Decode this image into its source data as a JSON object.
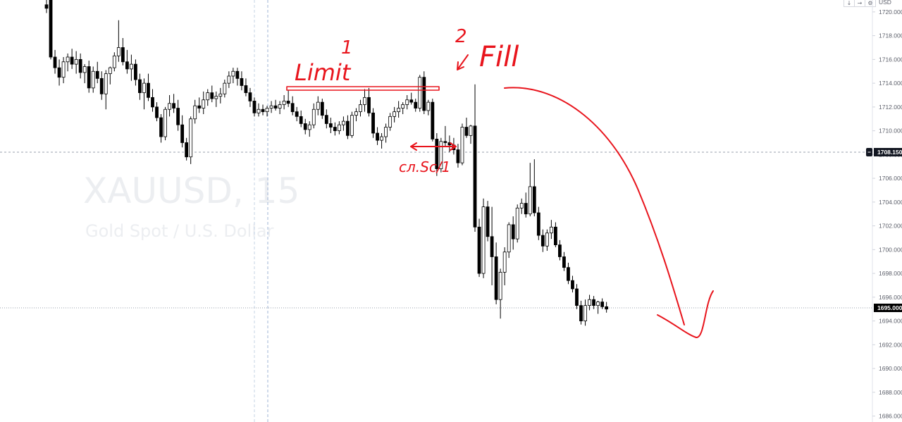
{
  "chart_data": {
    "type": "candlestick",
    "symbol": "XAUUSD, 15",
    "description": "Gold Spot / U.S. Dollar",
    "currency": "USD",
    "ylim": [
      1685.5,
      1721
    ],
    "y_ticks": [
      1720,
      1718,
      1716,
      1714,
      1712,
      1710,
      1708,
      1706,
      1704,
      1702,
      1700,
      1698,
      1696,
      1694,
      1692,
      1690,
      1688,
      1686
    ],
    "y_tick_labels": [
      "1720.000",
      "1718.000",
      "1716.000",
      "1714.000",
      "1712.000",
      "1710.000",
      "1708.000",
      "1706.000",
      "1704.000",
      "1702.000",
      "1700.000",
      "1698.000",
      "1696.000",
      "1694.000",
      "1692.000",
      "1690.000",
      "1688.000",
      "1686.000"
    ],
    "crosshair_price": 1708.15,
    "crosshair_label": "1708.150",
    "last_price": 1695.0,
    "last_price_label": "1695.000",
    "candles": [
      [
        1720.6,
        1721.5,
        1719.9,
        1720.3
      ],
      [
        1721.0,
        1721.0,
        1716.0,
        1716.2
      ],
      [
        1716.2,
        1716.8,
        1714.8,
        1715.3
      ],
      [
        1715.3,
        1716.0,
        1713.8,
        1714.5
      ],
      [
        1714.5,
        1716.2,
        1714.0,
        1715.8
      ],
      [
        1715.8,
        1716.5,
        1715.0,
        1716.2
      ],
      [
        1716.2,
        1716.9,
        1715.2,
        1715.6
      ],
      [
        1715.6,
        1716.7,
        1714.8,
        1716.0
      ],
      [
        1716.0,
        1716.5,
        1714.4,
        1714.9
      ],
      [
        1714.9,
        1715.6,
        1714.0,
        1715.4
      ],
      [
        1715.4,
        1715.9,
        1713.2,
        1713.6
      ],
      [
        1713.6,
        1715.4,
        1713.2,
        1715.0
      ],
      [
        1715.0,
        1715.8,
        1714.0,
        1714.4
      ],
      [
        1714.4,
        1715.0,
        1712.6,
        1713.1
      ],
      [
        1713.1,
        1715.1,
        1711.8,
        1714.8
      ],
      [
        1714.8,
        1715.4,
        1713.9,
        1715.3
      ],
      [
        1715.3,
        1716.6,
        1715.0,
        1716.3
      ],
      [
        1716.3,
        1719.3,
        1715.8,
        1717.0
      ],
      [
        1717.0,
        1717.8,
        1715.5,
        1715.8
      ],
      [
        1715.8,
        1716.8,
        1714.8,
        1715.2
      ],
      [
        1715.2,
        1716.4,
        1714.2,
        1715.6
      ],
      [
        1715.6,
        1716.0,
        1713.8,
        1714.3
      ],
      [
        1714.3,
        1714.8,
        1712.6,
        1713.2
      ],
      [
        1713.2,
        1714.4,
        1711.8,
        1714.0
      ],
      [
        1714.0,
        1714.8,
        1712.5,
        1712.8
      ],
      [
        1712.8,
        1713.5,
        1711.6,
        1712.0
      ],
      [
        1712.0,
        1712.4,
        1710.8,
        1711.1
      ],
      [
        1711.1,
        1711.4,
        1709.0,
        1709.5
      ],
      [
        1709.5,
        1712.0,
        1709.2,
        1711.8
      ],
      [
        1711.8,
        1713.0,
        1711.2,
        1712.3
      ],
      [
        1712.3,
        1713.1,
        1711.5,
        1711.9
      ],
      [
        1711.9,
        1712.6,
        1710.0,
        1710.5
      ],
      [
        1710.5,
        1711.3,
        1708.6,
        1709.0
      ],
      [
        1709.0,
        1709.4,
        1707.5,
        1707.8
      ],
      [
        1707.8,
        1711.2,
        1707.2,
        1711.0
      ],
      [
        1711.0,
        1712.6,
        1710.6,
        1712.1
      ],
      [
        1712.1,
        1712.8,
        1711.5,
        1711.9
      ],
      [
        1711.9,
        1713.3,
        1711.4,
        1712.6
      ],
      [
        1712.6,
        1713.5,
        1712.1,
        1713.2
      ],
      [
        1713.2,
        1713.8,
        1712.4,
        1712.7
      ],
      [
        1712.7,
        1713.3,
        1712.0,
        1712.9
      ],
      [
        1712.9,
        1713.6,
        1712.3,
        1713.1
      ],
      [
        1713.1,
        1714.3,
        1712.8,
        1714.0
      ],
      [
        1714.0,
        1715.0,
        1713.6,
        1714.6
      ],
      [
        1714.6,
        1715.3,
        1714.0,
        1715.0
      ],
      [
        1715.0,
        1715.3,
        1713.8,
        1714.4
      ],
      [
        1714.4,
        1715.0,
        1713.4,
        1713.8
      ],
      [
        1713.8,
        1714.4,
        1712.9,
        1713.2
      ],
      [
        1713.2,
        1713.6,
        1712.0,
        1712.5
      ],
      [
        1712.5,
        1712.8,
        1711.2,
        1711.5
      ],
      [
        1711.5,
        1712.3,
        1711.2,
        1711.8
      ],
      [
        1711.8,
        1712.2,
        1711.3,
        1711.6
      ],
      [
        1711.6,
        1712.1,
        1711.2,
        1711.9
      ],
      [
        1711.9,
        1712.5,
        1711.5,
        1712.1
      ],
      [
        1712.1,
        1712.6,
        1711.7,
        1711.9
      ],
      [
        1711.9,
        1712.5,
        1711.4,
        1712.2
      ],
      [
        1712.2,
        1713.0,
        1711.8,
        1712.5
      ],
      [
        1712.5,
        1713.4,
        1712.0,
        1712.3
      ],
      [
        1712.3,
        1712.9,
        1711.3,
        1711.6
      ],
      [
        1711.6,
        1712.0,
        1710.8,
        1711.2
      ],
      [
        1711.2,
        1711.7,
        1710.3,
        1710.6
      ],
      [
        1710.6,
        1711.0,
        1709.7,
        1710.1
      ],
      [
        1710.1,
        1710.8,
        1709.5,
        1710.5
      ],
      [
        1710.5,
        1712.3,
        1710.2,
        1711.8
      ],
      [
        1711.8,
        1712.9,
        1711.3,
        1712.4
      ],
      [
        1712.4,
        1712.7,
        1711.0,
        1711.3
      ],
      [
        1711.3,
        1711.8,
        1710.2,
        1710.6
      ],
      [
        1710.6,
        1711.1,
        1709.8,
        1710.3
      ],
      [
        1710.3,
        1710.7,
        1709.6,
        1710.0
      ],
      [
        1710.0,
        1710.8,
        1709.7,
        1710.5
      ],
      [
        1710.5,
        1711.2,
        1710.0,
        1710.8
      ],
      [
        1710.8,
        1711.3,
        1709.3,
        1709.6
      ],
      [
        1709.6,
        1711.6,
        1709.4,
        1711.3
      ],
      [
        1711.3,
        1711.9,
        1710.8,
        1711.6
      ],
      [
        1711.6,
        1712.6,
        1711.2,
        1712.2
      ],
      [
        1712.2,
        1713.5,
        1711.6,
        1712.8
      ],
      [
        1712.8,
        1713.6,
        1711.2,
        1711.5
      ],
      [
        1711.5,
        1711.9,
        1709.4,
        1709.8
      ],
      [
        1709.8,
        1710.3,
        1708.8,
        1709.2
      ],
      [
        1709.2,
        1709.8,
        1708.5,
        1709.5
      ],
      [
        1709.5,
        1710.6,
        1709.0,
        1710.3
      ],
      [
        1710.3,
        1711.5,
        1710.0,
        1711.2
      ],
      [
        1711.2,
        1712.0,
        1710.7,
        1711.6
      ],
      [
        1711.6,
        1712.5,
        1711.1,
        1711.9
      ],
      [
        1711.9,
        1712.4,
        1711.4,
        1712.2
      ],
      [
        1712.2,
        1713.0,
        1711.8,
        1712.6
      ],
      [
        1712.6,
        1713.2,
        1712.2,
        1712.4
      ],
      [
        1712.4,
        1712.7,
        1711.6,
        1711.9
      ],
      [
        1711.9,
        1714.7,
        1711.6,
        1714.5
      ],
      [
        1714.5,
        1715.0,
        1711.4,
        1711.7
      ],
      [
        1711.7,
        1712.6,
        1711.3,
        1712.4
      ],
      [
        1712.4,
        1712.7,
        1709.1,
        1709.3
      ],
      [
        1709.3,
        1709.8,
        1706.2,
        1706.8
      ],
      [
        1706.8,
        1709.4,
        1706.5,
        1709.1
      ],
      [
        1709.1,
        1710.4,
        1708.7,
        1709.0
      ],
      [
        1709.0,
        1709.6,
        1708.2,
        1708.8
      ],
      [
        1708.8,
        1709.4,
        1708.0,
        1708.4
      ],
      [
        1708.4,
        1708.9,
        1706.9,
        1707.3
      ],
      [
        1707.3,
        1710.6,
        1707.1,
        1710.3
      ],
      [
        1710.3,
        1711.1,
        1709.4,
        1709.6
      ],
      [
        1709.6,
        1710.5,
        1708.9,
        1710.4
      ],
      [
        1710.4,
        1713.9,
        1701.5,
        1701.9
      ],
      [
        1701.9,
        1702.6,
        1697.7,
        1698.0
      ],
      [
        1698.0,
        1704.3,
        1697.6,
        1703.6
      ],
      [
        1703.6,
        1704.1,
        1700.7,
        1701.1
      ],
      [
        1701.1,
        1703.6,
        1697.0,
        1699.4
      ],
      [
        1699.4,
        1700.6,
        1695.4,
        1695.8
      ],
      [
        1695.8,
        1698.4,
        1694.2,
        1698.1
      ],
      [
        1698.1,
        1700.2,
        1697.0,
        1699.8
      ],
      [
        1699.8,
        1702.3,
        1699.3,
        1702.1
      ],
      [
        1702.1,
        1702.8,
        1700.0,
        1700.9
      ],
      [
        1700.9,
        1703.8,
        1700.6,
        1703.5
      ],
      [
        1703.5,
        1704.3,
        1703.0,
        1703.9
      ],
      [
        1703.9,
        1704.8,
        1702.7,
        1703.0
      ],
      [
        1703.0,
        1707.3,
        1702.8,
        1705.3
      ],
      [
        1705.3,
        1707.6,
        1702.8,
        1703.1
      ],
      [
        1703.1,
        1703.6,
        1700.8,
        1701.2
      ],
      [
        1701.2,
        1701.7,
        1699.8,
        1700.3
      ],
      [
        1700.3,
        1701.7,
        1699.9,
        1701.4
      ],
      [
        1701.4,
        1702.5,
        1700.9,
        1701.9
      ],
      [
        1701.9,
        1702.3,
        1700.2,
        1700.4
      ],
      [
        1700.4,
        1700.8,
        1699.1,
        1699.4
      ],
      [
        1699.4,
        1699.8,
        1698.2,
        1698.5
      ],
      [
        1698.5,
        1698.9,
        1697.1,
        1697.4
      ],
      [
        1697.4,
        1697.8,
        1696.4,
        1696.7
      ],
      [
        1696.7,
        1697.1,
        1695.0,
        1695.3
      ],
      [
        1695.3,
        1695.7,
        1693.7,
        1694.0
      ],
      [
        1694.0,
        1695.8,
        1693.6,
        1695.3
      ],
      [
        1695.3,
        1696.2,
        1694.9,
        1695.8
      ],
      [
        1695.8,
        1696.1,
        1695.0,
        1695.3
      ],
      [
        1695.3,
        1695.7,
        1694.6,
        1695.6
      ],
      [
        1695.6,
        1695.9,
        1695.0,
        1695.2
      ],
      [
        1695.2,
        1695.6,
        1694.7,
        1695.0
      ]
    ]
  },
  "annotations": {
    "limit_label": "Limit",
    "num_1": "1",
    "num_2": "2",
    "fill_label": "Fill",
    "cross_label": "сл.Sc/1"
  },
  "toolbar": {
    "arrow_down": "↓",
    "arrow_right": "→",
    "gear": "⚙",
    "currency": "USD"
  },
  "colors": {
    "candle_up_body": "#ffffff",
    "candle_down_body": "#000000",
    "candle_outline": "#000000",
    "annotation_ink": "#e8141c",
    "watermark": "#eceef1",
    "price_tag": "#000000"
  }
}
